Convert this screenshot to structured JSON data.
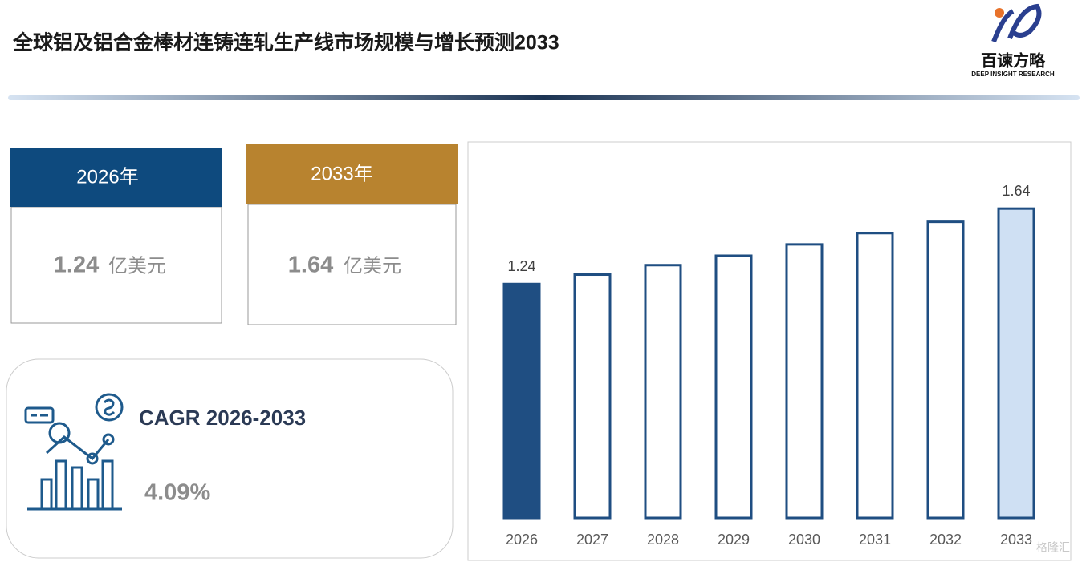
{
  "header": {
    "title": "全球铝及铝合金棒材连铸连轧生产线市场规模与增长预测2033",
    "logo_name": "百谏方略",
    "logo_tagline": "DEEP INSIGHT RESEARCH"
  },
  "cards": [
    {
      "year": "2026年",
      "value": "1.24",
      "unit": "亿美元"
    },
    {
      "year": "2033年",
      "value": "1.64",
      "unit": "亿美元"
    }
  ],
  "cagr": {
    "label": "CAGR 2026-2033",
    "value": "4.09%"
  },
  "watermark": "格隆汇",
  "chart_data": {
    "type": "bar",
    "categories": [
      "2026",
      "2027",
      "2028",
      "2029",
      "2030",
      "2031",
      "2032",
      "2033"
    ],
    "values": [
      1.24,
      1.29,
      1.34,
      1.39,
      1.45,
      1.51,
      1.57,
      1.64
    ],
    "value_labels": [
      "1.24",
      null,
      null,
      null,
      null,
      null,
      null,
      "1.64"
    ],
    "color": "#1f4e82",
    "fills": [
      "#1f4e82",
      "#ffffff",
      "#ffffff",
      "#ffffff",
      "#ffffff",
      "#ffffff",
      "#ffffff",
      "#cfe0f3"
    ],
    "ylim": [
      0,
      1.9
    ]
  }
}
